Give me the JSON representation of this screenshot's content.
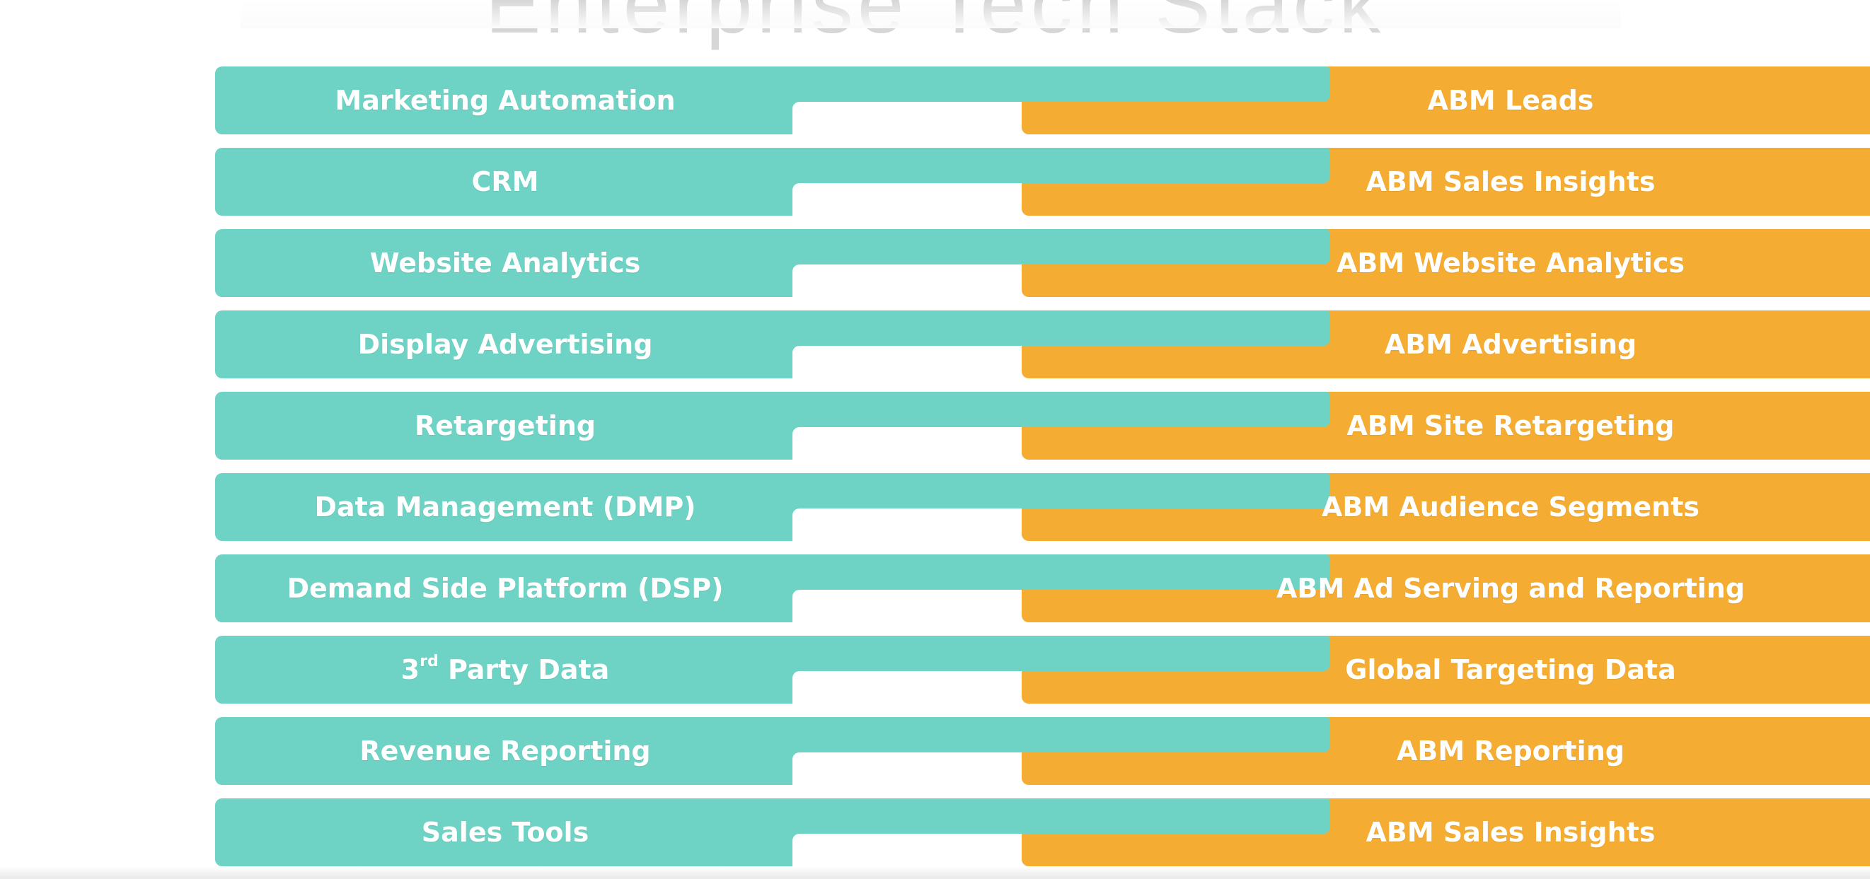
{
  "title": "Enterprise Tech Stack",
  "colors": {
    "left_bar": "#6ed3c4",
    "right_bar": "#f4ad32",
    "text": "#ffffff",
    "background": "#ffffff"
  },
  "rows": [
    {
      "left": "Marketing Automation",
      "right": "ABM Leads"
    },
    {
      "left": "CRM",
      "right": "ABM Sales Insights"
    },
    {
      "left": "Website Analytics",
      "right": "ABM Website Analytics"
    },
    {
      "left": "Display Advertising",
      "right": "ABM Advertising"
    },
    {
      "left": "Retargeting",
      "right": "ABM Site Retargeting"
    },
    {
      "left": "Data Management (DMP)",
      "right": "ABM Audience Segments"
    },
    {
      "left": "Demand Side Platform (DSP)",
      "right": "ABM Ad Serving and Reporting"
    },
    {
      "left_prefix": "3",
      "left_sup": "rd",
      "left": " Party Data",
      "right": "Global Targeting Data"
    },
    {
      "left": "Revenue Reporting",
      "right": "ABM Reporting"
    },
    {
      "left": "Sales Tools",
      "right": "ABM Sales Insights"
    }
  ]
}
